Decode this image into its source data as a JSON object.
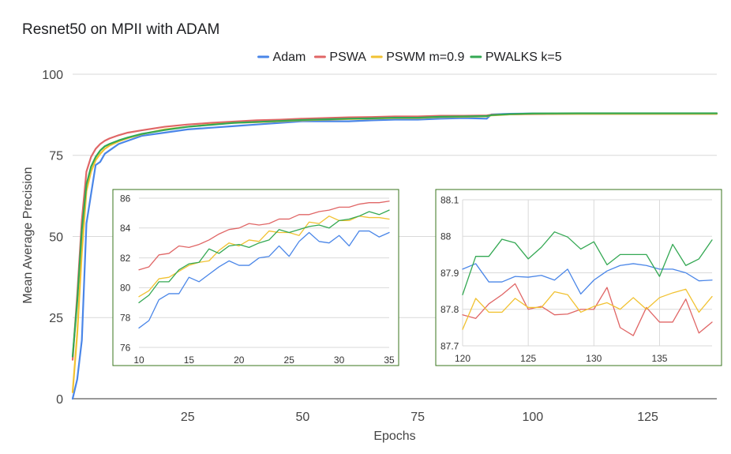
{
  "chart_data": [
    {
      "type": "line",
      "title": "Resnet50 on MPII with ADAM",
      "xlabel": "Epochs",
      "ylabel": "Mean Average Precision",
      "xlim": [
        0,
        140
      ],
      "ylim": [
        0,
        100
      ],
      "x_ticks": [
        25,
        50,
        75,
        100,
        125
      ],
      "y_ticks": [
        0,
        25,
        50,
        75,
        100
      ],
      "grid": true,
      "legend_position": "top",
      "series": [
        {
          "name": "Adam",
          "color": "#4a86e8",
          "x": [
            0,
            1,
            2,
            3,
            4,
            5,
            6,
            7,
            8,
            10,
            12,
            15,
            20,
            25,
            30,
            35,
            40,
            45,
            50,
            55,
            60,
            65,
            70,
            75,
            80,
            85,
            90,
            91,
            95,
            100,
            110,
            120,
            130,
            140
          ],
          "y": [
            0,
            6,
            18,
            54,
            63,
            72,
            73,
            75.5,
            76.5,
            78.5,
            79.5,
            81,
            82,
            83,
            83.5,
            84,
            84.5,
            85,
            85.5,
            85.5,
            85.5,
            85.8,
            86,
            86,
            86.3,
            86.5,
            86.3,
            87.6,
            87.8,
            87.9,
            87.9,
            87.9,
            87.9,
            87.9
          ]
        },
        {
          "name": "PSWA",
          "color": "#e06666",
          "x": [
            0,
            1,
            2,
            3,
            4,
            5,
            6,
            7,
            8,
            10,
            12,
            15,
            20,
            25,
            30,
            35,
            40,
            45,
            50,
            55,
            60,
            65,
            70,
            75,
            80,
            85,
            90,
            91,
            95,
            100,
            110,
            120,
            130,
            140
          ],
          "y": [
            12,
            32,
            55,
            70,
            74.5,
            77,
            78.5,
            79.5,
            80.2,
            81.2,
            82,
            82.7,
            83.8,
            84.5,
            85,
            85.4,
            85.8,
            86,
            86.3,
            86.5,
            86.7,
            86.8,
            87,
            87,
            87.2,
            87.2,
            87.3,
            87.5,
            87.6,
            87.7,
            87.8,
            87.8,
            87.8,
            87.8
          ]
        },
        {
          "name": "PSWM m=0.9",
          "color": "#f1c232",
          "x": [
            0,
            1,
            2,
            3,
            4,
            5,
            6,
            7,
            8,
            10,
            12,
            15,
            20,
            25,
            30,
            35,
            40,
            45,
            50,
            55,
            60,
            65,
            70,
            75,
            80,
            85,
            90,
            91,
            95,
            100,
            110,
            120,
            130,
            140
          ],
          "y": [
            2,
            20,
            45,
            64,
            70,
            73.5,
            75.5,
            77,
            78,
            79.3,
            80.3,
            81.5,
            83,
            83.8,
            84.5,
            85,
            85.2,
            85.5,
            85.8,
            86,
            86.2,
            86.3,
            86.5,
            86.5,
            86.8,
            86.9,
            87,
            87.3,
            87.6,
            87.8,
            87.8,
            87.8,
            87.8,
            87.8
          ]
        },
        {
          "name": "PWALKS k=5",
          "color": "#34a853",
          "x": [
            0,
            1,
            2,
            3,
            4,
            5,
            6,
            7,
            8,
            10,
            12,
            15,
            20,
            25,
            30,
            35,
            40,
            45,
            50,
            55,
            60,
            65,
            70,
            75,
            80,
            85,
            90,
            91,
            95,
            100,
            110,
            120,
            130,
            140
          ],
          "y": [
            13,
            30,
            52,
            66,
            71.5,
            74.5,
            76.5,
            77.8,
            78.5,
            79.6,
            80.5,
            81.6,
            82.8,
            83.8,
            84.4,
            85,
            85.3,
            85.6,
            85.9,
            86.1,
            86.3,
            86.4,
            86.6,
            86.6,
            86.9,
            87,
            87.1,
            87.4,
            87.7,
            87.9,
            87.95,
            87.95,
            87.95,
            87.95
          ]
        }
      ]
    },
    {
      "type": "line",
      "title": "",
      "xlabel": "",
      "ylabel": "",
      "xlim": [
        10,
        35
      ],
      "ylim": [
        76,
        86
      ],
      "x_ticks": [
        10,
        15,
        20,
        25,
        30,
        35
      ],
      "y_ticks": [
        76,
        78,
        80,
        82,
        84,
        86
      ],
      "grid": true,
      "border_color": "#38761d",
      "series": [
        {
          "name": "Adam",
          "color": "#4a86e8",
          "x": [
            10,
            11,
            12,
            13,
            14,
            15,
            16,
            17,
            18,
            19,
            20,
            21,
            22,
            23,
            24,
            25,
            26,
            27,
            28,
            29,
            30,
            31,
            32,
            33,
            34,
            35
          ],
          "y": [
            77.3,
            77.8,
            79.2,
            79.6,
            79.6,
            80.7,
            80.4,
            80.9,
            81.4,
            81.8,
            81.5,
            81.5,
            82,
            82.1,
            82.8,
            82.1,
            83.1,
            83.7,
            83.1,
            83,
            83.5,
            82.8,
            83.8,
            83.8,
            83.4,
            83.7
          ]
        },
        {
          "name": "PSWA",
          "color": "#e06666",
          "x": [
            10,
            11,
            12,
            13,
            14,
            15,
            16,
            17,
            18,
            19,
            20,
            21,
            22,
            23,
            24,
            25,
            26,
            27,
            28,
            29,
            30,
            31,
            32,
            33,
            34,
            35
          ],
          "y": [
            81.2,
            81.4,
            82.2,
            82.3,
            82.8,
            82.7,
            82.9,
            83.2,
            83.6,
            83.9,
            84,
            84.3,
            84.2,
            84.3,
            84.6,
            84.6,
            84.9,
            84.9,
            85.1,
            85.2,
            85.4,
            85.4,
            85.6,
            85.7,
            85.7,
            85.8
          ]
        },
        {
          "name": "PSWM m=0.9",
          "color": "#f1c232",
          "x": [
            10,
            11,
            12,
            13,
            14,
            15,
            16,
            17,
            18,
            19,
            20,
            21,
            22,
            23,
            24,
            25,
            26,
            27,
            28,
            29,
            30,
            31,
            32,
            33,
            34,
            35
          ],
          "y": [
            79.4,
            79.8,
            80.6,
            80.7,
            81.1,
            81.5,
            81.7,
            81.8,
            82.5,
            83,
            82.8,
            83.2,
            83.1,
            83.8,
            83.7,
            83.7,
            83.5,
            84.4,
            84.3,
            84.8,
            84.5,
            84.5,
            84.8,
            84.7,
            84.7,
            84.6
          ]
        },
        {
          "name": "PWALKS k=5",
          "color": "#34a853",
          "x": [
            10,
            11,
            12,
            13,
            14,
            15,
            16,
            17,
            18,
            19,
            20,
            21,
            22,
            23,
            24,
            25,
            26,
            27,
            28,
            29,
            30,
            31,
            32,
            33,
            34,
            35
          ],
          "y": [
            79,
            79.5,
            80.4,
            80.4,
            81.2,
            81.6,
            81.7,
            82.6,
            82.3,
            82.8,
            82.9,
            82.7,
            83,
            83.2,
            83.9,
            83.7,
            83.9,
            84.1,
            84.2,
            84,
            84.5,
            84.6,
            84.8,
            85.1,
            84.9,
            85.2
          ]
        }
      ]
    },
    {
      "type": "line",
      "title": "",
      "xlabel": "",
      "ylabel": "",
      "xlim": [
        120,
        139
      ],
      "ylim": [
        87.7,
        88.1
      ],
      "x_ticks": [
        120,
        125,
        130,
        135
      ],
      "y_ticks": [
        87.7,
        87.8,
        87.9,
        88,
        88.1
      ],
      "grid": true,
      "border_color": "#38761d",
      "series": [
        {
          "name": "Adam",
          "color": "#4a86e8",
          "x": [
            120,
            121,
            122,
            123,
            124,
            125,
            126,
            127,
            128,
            129,
            130,
            131,
            132,
            133,
            134,
            135,
            136,
            137,
            138,
            139
          ],
          "y": [
            87.91,
            87.925,
            87.875,
            87.875,
            87.89,
            87.888,
            87.893,
            87.88,
            87.91,
            87.842,
            87.88,
            87.905,
            87.92,
            87.925,
            87.92,
            87.91,
            87.91,
            87.9,
            87.878,
            87.88
          ]
        },
        {
          "name": "PSWA",
          "color": "#e06666",
          "x": [
            120,
            121,
            122,
            123,
            124,
            125,
            126,
            127,
            128,
            129,
            130,
            131,
            132,
            133,
            134,
            135,
            136,
            137,
            138,
            139
          ],
          "y": [
            87.785,
            87.775,
            87.815,
            87.84,
            87.87,
            87.8,
            87.808,
            87.785,
            87.787,
            87.8,
            87.8,
            87.86,
            87.75,
            87.728,
            87.805,
            87.765,
            87.765,
            87.828,
            87.735,
            87.765
          ]
        },
        {
          "name": "PSWM m=0.9",
          "color": "#f1c232",
          "x": [
            120,
            121,
            122,
            123,
            124,
            125,
            126,
            127,
            128,
            129,
            130,
            131,
            132,
            133,
            134,
            135,
            136,
            137,
            138,
            139
          ],
          "y": [
            87.745,
            87.83,
            87.792,
            87.792,
            87.83,
            87.805,
            87.805,
            87.848,
            87.84,
            87.792,
            87.808,
            87.818,
            87.8,
            87.832,
            87.8,
            87.832,
            87.845,
            87.855,
            87.792,
            87.835
          ]
        },
        {
          "name": "PWALKS k=5",
          "color": "#34a853",
          "x": [
            120,
            121,
            122,
            123,
            124,
            125,
            126,
            127,
            128,
            129,
            130,
            131,
            132,
            133,
            134,
            135,
            136,
            137,
            138,
            139
          ],
          "y": [
            87.84,
            87.945,
            87.945,
            87.992,
            87.982,
            87.938,
            87.97,
            88.012,
            87.998,
            87.965,
            87.985,
            87.922,
            87.95,
            87.95,
            87.95,
            87.89,
            87.978,
            87.92,
            87.938,
            87.99
          ]
        }
      ]
    }
  ]
}
